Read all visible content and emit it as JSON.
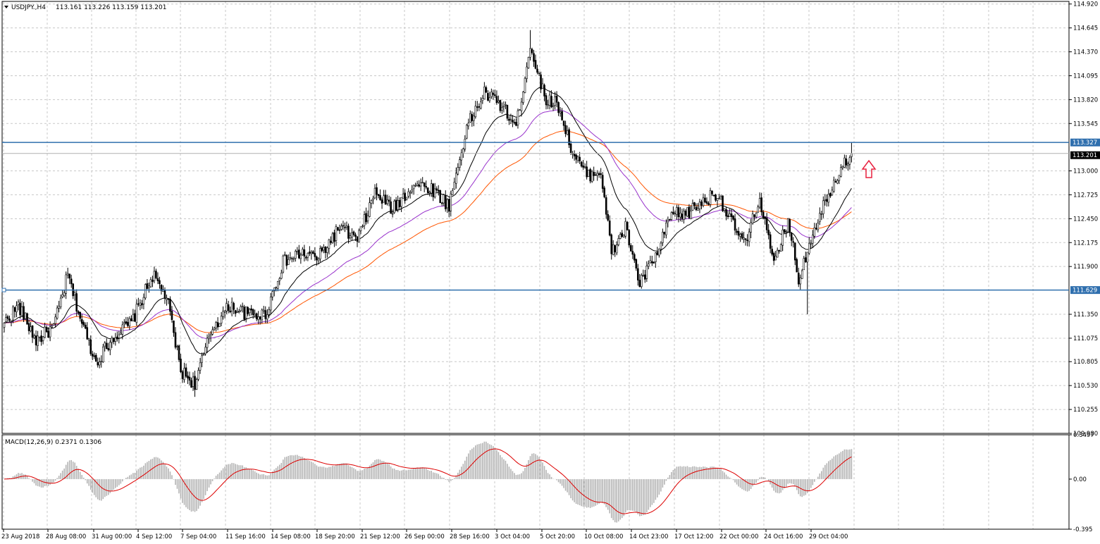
{
  "header": {
    "symbol": "USDJPY.,H4",
    "ohlc": "113.161 113.226 113.159 113.201"
  },
  "macd_header": "MACD(12,26,9) 0.2371 0.1306",
  "price_axis": {
    "ticks": [
      "114.920",
      "114.645",
      "114.370",
      "114.095",
      "113.820",
      "113.545",
      "113.000",
      "112.725",
      "112.450",
      "112.175",
      "111.900",
      "111.350",
      "111.075",
      "110.805",
      "110.530",
      "110.255",
      "109.980"
    ]
  },
  "macd_axis": {
    "ticks": [
      "0.3497",
      "0.00",
      "-0.395"
    ]
  },
  "time_axis": {
    "labels": [
      "23 Aug 2018",
      "28 Aug 08:00",
      "31 Aug 00:00",
      "4 Sep 12:00",
      "7 Sep 04:00",
      "11 Sep 16:00",
      "14 Sep 08:00",
      "18 Sep 20:00",
      "21 Sep 12:00",
      "26 Sep 00:00",
      "28 Sep 16:00",
      "3 Oct 04:00",
      "5 Oct 20:00",
      "10 Oct 08:00",
      "14 Oct 23:00",
      "17 Oct 12:00",
      "22 Oct 00:00",
      "24 Oct 16:00",
      "29 Oct 04:00"
    ]
  },
  "levels": {
    "resistance": "113.327",
    "support": "111.629",
    "current": "113.201"
  },
  "colors": {
    "level_line": "#2f6fae",
    "ma_fast": "#000000",
    "ma_mid": "#9933cc",
    "ma_slow": "#ff5500",
    "macd_hist": "#b4b4b4",
    "macd_signal": "#dd0000",
    "arrow": "#e8213f",
    "grid": "#c8c8c8"
  },
  "chart_data": {
    "type": "candlestick",
    "instrument": "USDJPY.",
    "timeframe": "H4",
    "ylim": [
      109.98,
      114.95
    ],
    "anchor_closes": [
      [
        0,
        111.25
      ],
      [
        8,
        111.45
      ],
      [
        18,
        111.05
      ],
      [
        28,
        111.2
      ],
      [
        36,
        111.8
      ],
      [
        44,
        111.25
      ],
      [
        52,
        110.8
      ],
      [
        62,
        111.1
      ],
      [
        72,
        111.25
      ],
      [
        84,
        111.8
      ],
      [
        92,
        111.55
      ],
      [
        100,
        110.7
      ],
      [
        108,
        110.55
      ],
      [
        118,
        111.2
      ],
      [
        128,
        111.45
      ],
      [
        138,
        111.35
      ],
      [
        148,
        111.35
      ],
      [
        158,
        111.95
      ],
      [
        168,
        112.05
      ],
      [
        178,
        112.0
      ],
      [
        190,
        112.35
      ],
      [
        200,
        112.2
      ],
      [
        210,
        112.75
      ],
      [
        220,
        112.55
      ],
      [
        232,
        112.85
      ],
      [
        242,
        112.8
      ],
      [
        252,
        112.6
      ],
      [
        262,
        113.5
      ],
      [
        272,
        113.9
      ],
      [
        282,
        113.75
      ],
      [
        290,
        113.5
      ],
      [
        298,
        114.45
      ],
      [
        306,
        113.85
      ],
      [
        314,
        113.75
      ],
      [
        322,
        113.2
      ],
      [
        330,
        112.95
      ],
      [
        338,
        113.0
      ],
      [
        344,
        112.05
      ],
      [
        352,
        112.35
      ],
      [
        360,
        111.7
      ],
      [
        370,
        112.05
      ],
      [
        378,
        112.5
      ],
      [
        386,
        112.5
      ],
      [
        396,
        112.65
      ],
      [
        404,
        112.75
      ],
      [
        412,
        112.4
      ],
      [
        420,
        112.15
      ],
      [
        428,
        112.7
      ],
      [
        436,
        111.9
      ],
      [
        444,
        112.45
      ],
      [
        450,
        111.75
      ],
      [
        458,
        112.3
      ],
      [
        466,
        112.7
      ],
      [
        474,
        113.05
      ],
      [
        480,
        113.2
      ]
    ],
    "macd": {
      "last_histogram": 0.2371,
      "last_signal": 0.1306,
      "ylim": [
        -0.395,
        0.3497
      ]
    },
    "annotations": [
      "up-arrow above current price"
    ]
  }
}
